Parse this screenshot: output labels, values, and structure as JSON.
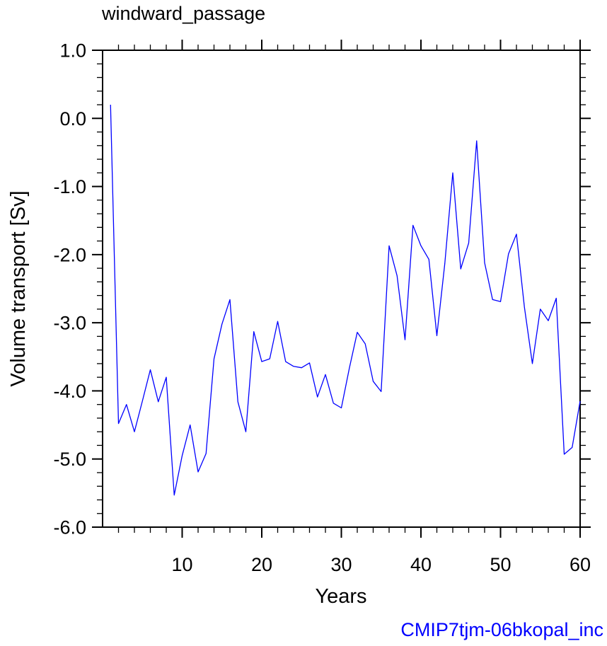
{
  "chart_data": {
    "type": "line",
    "title": "windward_passage",
    "xlabel": "Years",
    "ylabel": "Volume transport [Sv]",
    "footer": "CMIP7tjm-06bkopal_inc",
    "xlim": [
      0,
      60
    ],
    "ylim": [
      -6.0,
      1.0
    ],
    "x_major_ticks": [
      10,
      20,
      30,
      40,
      50,
      60
    ],
    "x_tick_labels": [
      "10",
      "20",
      "30",
      "40",
      "50",
      "60"
    ],
    "x_minor_step": 2,
    "y_major_ticks": [
      1.0,
      0.0,
      -1.0,
      -2.0,
      -3.0,
      -4.0,
      -5.0,
      -6.0
    ],
    "y_tick_labels": [
      "1.0",
      "0.0",
      "-1.0",
      "-2.0",
      "-3.0",
      "-4.0",
      "-5.0",
      "-6.0"
    ],
    "y_minor_step": 0.2,
    "line_color": "#0000ff",
    "footer_color": "#0000ff",
    "grid": false,
    "series": [
      {
        "x": [
          1,
          2,
          3,
          4,
          5,
          6,
          7,
          8,
          9,
          10,
          11,
          12,
          13,
          14,
          15,
          16,
          17,
          18,
          19,
          20,
          21,
          22,
          23,
          24,
          25,
          26,
          27,
          28,
          29,
          30,
          31,
          32,
          33,
          34,
          35,
          36,
          37,
          38,
          39,
          40,
          41,
          42,
          43,
          44,
          45,
          46,
          47,
          48,
          49,
          50,
          51,
          52,
          53,
          54,
          55,
          56,
          57,
          58,
          59,
          60
        ],
        "values": [
          0.2,
          -4.48,
          -4.2,
          -4.6,
          -4.15,
          -3.69,
          -4.16,
          -3.8,
          -5.53,
          -4.95,
          -4.5,
          -5.19,
          -4.92,
          -3.53,
          -3.02,
          -2.66,
          -4.16,
          -4.6,
          -3.13,
          -3.57,
          -3.53,
          -2.98,
          -3.57,
          -3.64,
          -3.66,
          -3.59,
          -4.09,
          -3.76,
          -4.18,
          -4.25,
          -3.67,
          -3.14,
          -3.31,
          -3.86,
          -4.01,
          -1.87,
          -2.31,
          -3.25,
          -1.57,
          -1.87,
          -2.07,
          -3.19,
          -2.13,
          -0.8,
          -2.21,
          -1.83,
          -0.33,
          -2.12,
          -2.66,
          -2.69,
          -1.99,
          -1.7,
          -2.77,
          -3.6,
          -2.8,
          -2.97,
          -2.64,
          -4.93,
          -4.83,
          -4.15
        ]
      }
    ]
  }
}
